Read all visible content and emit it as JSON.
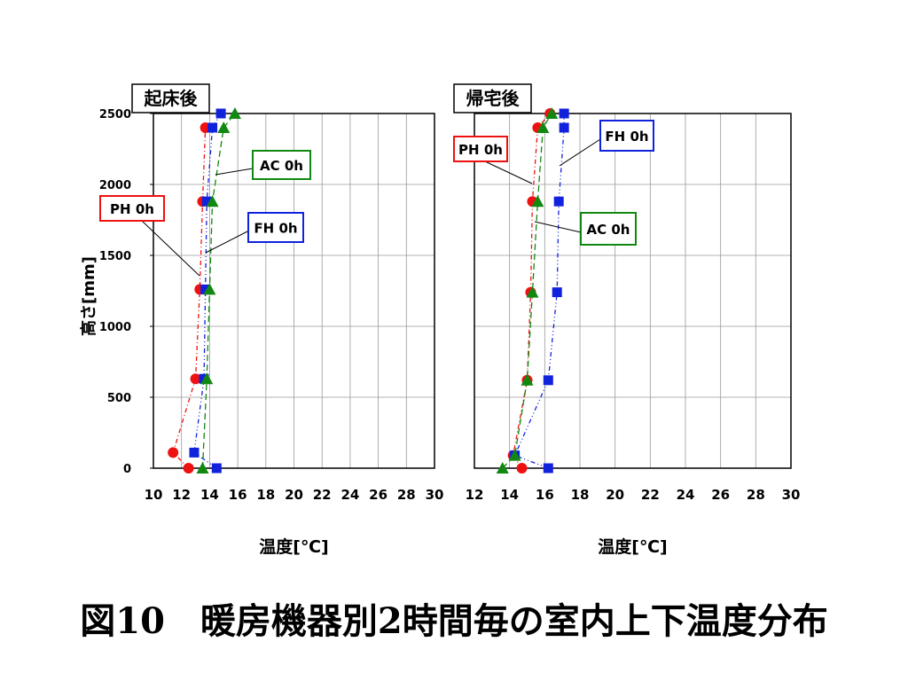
{
  "caption": "図10　暖房機器別2時間毎の室内上下温度分布",
  "colors": {
    "PH": "#ee1111",
    "FH": "#1122dd",
    "AC": "#118811"
  },
  "chart_data": [
    {
      "type": "scatter",
      "title": "起床後",
      "xlabel": "温度[℃]",
      "ylabel": "高さ[mm]",
      "xlim": [
        10,
        30
      ],
      "ylim": [
        0,
        2500
      ],
      "xticks": [
        "10",
        "12",
        "14",
        "16",
        "18",
        "20",
        "22",
        "24",
        "26",
        "28",
        "30"
      ],
      "yticks": [
        "0",
        "500",
        "1000",
        "1500",
        "2000",
        "2500"
      ],
      "grid": true,
      "series": [
        {
          "name": "PH 0h",
          "marker": "circle",
          "points": [
            [
              12.5,
              0
            ],
            [
              11.4,
              110
            ],
            [
              13.0,
              630
            ],
            [
              13.3,
              1260
            ],
            [
              13.5,
              1880
            ],
            [
              13.7,
              2400
            ]
          ]
        },
        {
          "name": "FH 0h",
          "marker": "square",
          "points": [
            [
              14.5,
              0
            ],
            [
              12.9,
              110
            ],
            [
              13.6,
              630
            ],
            [
              13.7,
              1260
            ],
            [
              13.8,
              1880
            ],
            [
              14.2,
              2400
            ],
            [
              14.8,
              2500
            ]
          ]
        },
        {
          "name": "AC 0h",
          "marker": "triangle",
          "points": [
            [
              13.5,
              0
            ],
            [
              13.8,
              630
            ],
            [
              14.0,
              1260
            ],
            [
              14.2,
              1880
            ],
            [
              15.0,
              2400
            ],
            [
              15.8,
              2500
            ]
          ]
        }
      ],
      "annotations": [
        {
          "text": "AC 0h",
          "series": "AC 0h"
        },
        {
          "text": "PH 0h",
          "series": "PH 0h"
        },
        {
          "text": "FH 0h",
          "series": "FH 0h"
        }
      ]
    },
    {
      "type": "scatter",
      "title": "帰宅後",
      "xlabel": "温度[℃]",
      "ylabel": "",
      "xlim": [
        12,
        30
      ],
      "ylim": [
        0,
        2500
      ],
      "xticks": [
        "12",
        "14",
        "16",
        "18",
        "20",
        "22",
        "24",
        "26",
        "28",
        "30"
      ],
      "yticks": [],
      "grid": true,
      "series": [
        {
          "name": "PH 0h",
          "marker": "circle",
          "points": [
            [
              14.7,
              0
            ],
            [
              14.2,
              90
            ],
            [
              15.0,
              620
            ],
            [
              15.2,
              1240
            ],
            [
              15.3,
              1880
            ],
            [
              15.6,
              2400
            ],
            [
              16.3,
              2500
            ]
          ]
        },
        {
          "name": "FH 0h",
          "marker": "square",
          "points": [
            [
              16.2,
              0
            ],
            [
              14.3,
              90
            ],
            [
              16.2,
              620
            ],
            [
              16.7,
              1240
            ],
            [
              16.8,
              1880
            ],
            [
              17.1,
              2400
            ],
            [
              17.1,
              2500
            ]
          ]
        },
        {
          "name": "AC 0h",
          "marker": "triangle",
          "points": [
            [
              13.6,
              0
            ],
            [
              14.3,
              90
            ],
            [
              15.0,
              620
            ],
            [
              15.3,
              1240
            ],
            [
              15.6,
              1880
            ],
            [
              15.9,
              2400
            ],
            [
              16.4,
              2500
            ]
          ]
        }
      ],
      "annotations": [
        {
          "text": "FH 0h",
          "series": "FH 0h"
        },
        {
          "text": "PH 0h",
          "series": "PH 0h"
        },
        {
          "text": "AC 0h",
          "series": "AC 0h"
        }
      ]
    }
  ]
}
